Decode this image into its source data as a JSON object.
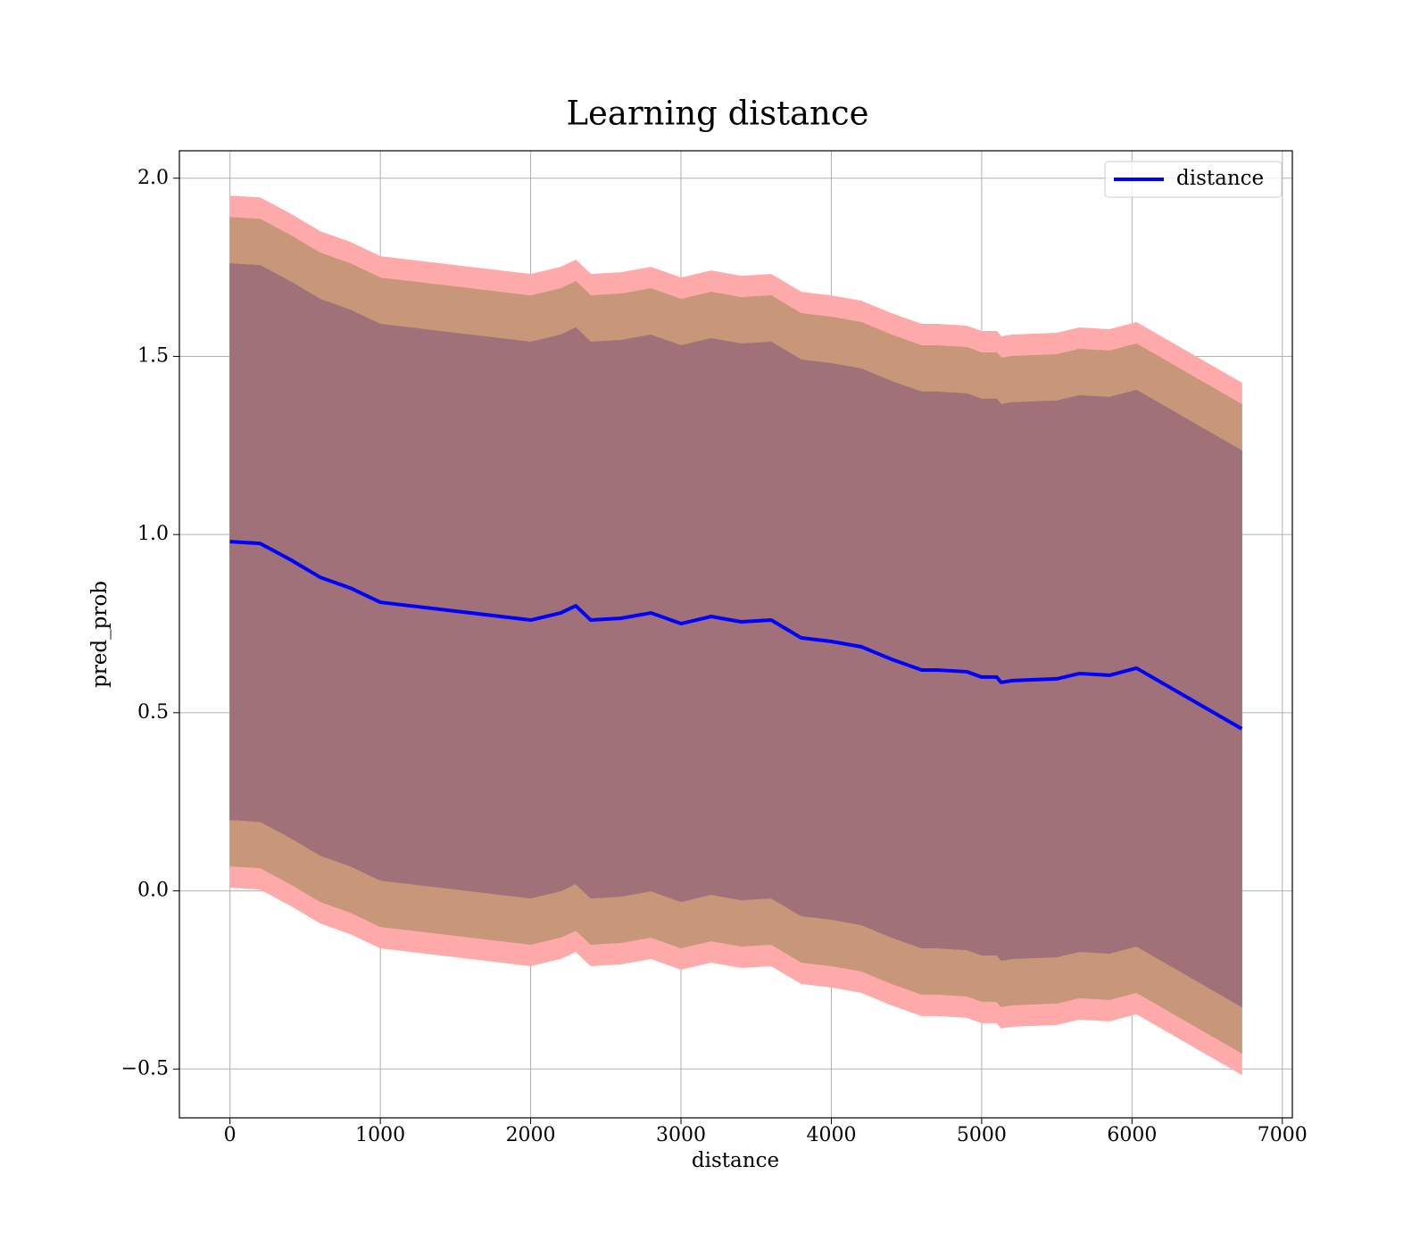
{
  "chart_data": {
    "type": "line",
    "title": "Learning distance",
    "x_label": "distance",
    "y_label": "pred_prob",
    "x": [
      0,
      200,
      400,
      600,
      800,
      1000,
      1200,
      1400,
      1600,
      1800,
      2000,
      2200,
      2300,
      2400,
      2600,
      2800,
      3000,
      3200,
      3400,
      3600,
      3800,
      4000,
      4200,
      4400,
      4600,
      4700,
      4900,
      5000,
      5100,
      5130,
      5200,
      5500,
      5650,
      5850,
      6030,
      6730
    ],
    "series": [
      {
        "name": "distance",
        "color": "#0000ff",
        "values": [
          0.98,
          0.975,
          0.93,
          0.88,
          0.85,
          0.81,
          0.8,
          0.79,
          0.78,
          0.77,
          0.76,
          0.78,
          0.8,
          0.76,
          0.765,
          0.78,
          0.75,
          0.77,
          0.755,
          0.76,
          0.71,
          0.7,
          0.685,
          0.65,
          0.62,
          0.62,
          0.615,
          0.6,
          0.6,
          0.585,
          0.59,
          0.595,
          0.61,
          0.605,
          0.625,
          0.455
        ]
      }
    ],
    "bands": [
      {
        "color": "#ffaaaa",
        "upper": [
          1.95,
          1.945,
          1.9,
          1.85,
          1.82,
          1.78,
          1.77,
          1.76,
          1.75,
          1.74,
          1.73,
          1.75,
          1.77,
          1.73,
          1.735,
          1.75,
          1.72,
          1.74,
          1.725,
          1.73,
          1.68,
          1.67,
          1.655,
          1.62,
          1.59,
          1.59,
          1.585,
          1.57,
          1.57,
          1.555,
          1.56,
          1.565,
          1.58,
          1.575,
          1.595,
          1.425
        ],
        "lower": [
          0.01,
          0.005,
          -0.04,
          -0.09,
          -0.12,
          -0.16,
          -0.17,
          -0.18,
          -0.19,
          -0.2,
          -0.21,
          -0.19,
          -0.17,
          -0.21,
          -0.205,
          -0.19,
          -0.22,
          -0.2,
          -0.215,
          -0.21,
          -0.26,
          -0.27,
          -0.285,
          -0.32,
          -0.35,
          -0.35,
          -0.355,
          -0.37,
          -0.37,
          -0.385,
          -0.38,
          -0.375,
          -0.36,
          -0.365,
          -0.345,
          -0.515
        ]
      },
      {
        "color": "#c89679",
        "upper": [
          1.89,
          1.885,
          1.84,
          1.79,
          1.76,
          1.72,
          1.71,
          1.7,
          1.69,
          1.68,
          1.67,
          1.69,
          1.71,
          1.67,
          1.675,
          1.69,
          1.66,
          1.68,
          1.665,
          1.67,
          1.62,
          1.61,
          1.595,
          1.56,
          1.53,
          1.53,
          1.525,
          1.51,
          1.51,
          1.495,
          1.5,
          1.505,
          1.52,
          1.515,
          1.535,
          1.365
        ],
        "lower": [
          0.07,
          0.065,
          0.02,
          -0.03,
          -0.06,
          -0.1,
          -0.11,
          -0.12,
          -0.13,
          -0.14,
          -0.15,
          -0.13,
          -0.11,
          -0.15,
          -0.145,
          -0.13,
          -0.16,
          -0.14,
          -0.155,
          -0.15,
          -0.2,
          -0.21,
          -0.225,
          -0.26,
          -0.29,
          -0.29,
          -0.295,
          -0.31,
          -0.31,
          -0.325,
          -0.32,
          -0.315,
          -0.3,
          -0.305,
          -0.285,
          -0.455
        ]
      },
      {
        "color": "#a07179",
        "upper": [
          1.76,
          1.755,
          1.71,
          1.66,
          1.63,
          1.59,
          1.58,
          1.57,
          1.56,
          1.55,
          1.54,
          1.56,
          1.58,
          1.54,
          1.545,
          1.56,
          1.53,
          1.55,
          1.535,
          1.54,
          1.49,
          1.48,
          1.465,
          1.43,
          1.4,
          1.4,
          1.395,
          1.38,
          1.38,
          1.365,
          1.37,
          1.375,
          1.39,
          1.385,
          1.405,
          1.235
        ],
        "lower": [
          0.2,
          0.195,
          0.15,
          0.1,
          0.07,
          0.03,
          0.02,
          0.01,
          0,
          -0.01,
          -0.02,
          0,
          0.02,
          -0.02,
          -0.015,
          0,
          -0.03,
          -0.01,
          -0.025,
          -0.02,
          -0.07,
          -0.08,
          -0.095,
          -0.13,
          -0.16,
          -0.16,
          -0.165,
          -0.18,
          -0.18,
          -0.195,
          -0.19,
          -0.185,
          -0.17,
          -0.175,
          -0.155,
          -0.325
        ]
      }
    ],
    "xlim": [
      -336.5,
      7066.5
    ],
    "ylim": [
      -0.637,
      2.077
    ],
    "xticks": [
      0,
      1000,
      2000,
      3000,
      4000,
      5000,
      6000,
      7000
    ],
    "yticks": [
      {
        "value": -0.5,
        "label": "−0.5"
      },
      {
        "value": 0,
        "label": "0.0"
      },
      0.5,
      {
        "value": 1,
        "label": "1.0"
      },
      1.5,
      {
        "value": 2,
        "label": "2.0"
      }
    ],
    "grid": true,
    "legend": "upper right"
  }
}
